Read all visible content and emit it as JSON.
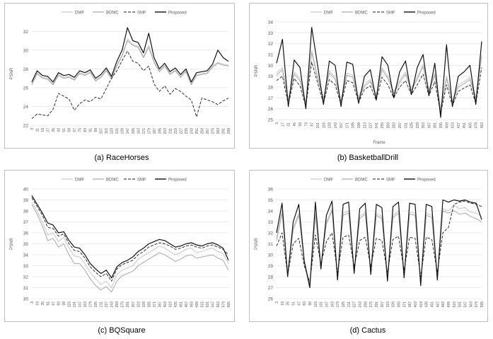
{
  "chart_data": [
    {
      "type": "line",
      "caption": "(a)  RaceHorses",
      "legend": [
        "DMF",
        "BDMC",
        "SMF",
        "Proposed"
      ],
      "legend_placement": "top",
      "ylabel": "PSNR",
      "xlabel": "",
      "ylim": [
        22,
        33
      ],
      "yticks": [
        22,
        24,
        26,
        28,
        30,
        32
      ],
      "xticks": [
        "3",
        "11",
        "19",
        "27",
        "35",
        "43",
        "51",
        "59",
        "67",
        "75",
        "83",
        "91",
        "99",
        "107",
        "115",
        "123",
        "131",
        "139",
        "147",
        "155",
        "163",
        "171",
        "179",
        "187",
        "195",
        "203",
        "211",
        "219",
        "227",
        "235",
        "243",
        "251",
        "259",
        "267",
        "275",
        "283",
        "291",
        "299"
      ],
      "x": [
        3,
        11,
        19,
        27,
        35,
        43,
        51,
        59,
        67,
        75,
        83,
        91,
        99,
        107,
        115,
        123,
        131,
        139,
        147,
        155,
        163,
        171,
        179,
        187,
        195,
        203,
        211,
        219,
        227,
        235,
        243,
        251,
        259,
        267,
        275,
        283,
        291,
        299
      ],
      "series": [
        {
          "name": "DMF",
          "values": [
            26.4,
            27.6,
            27.1,
            27.0,
            26.4,
            27.4,
            27.1,
            27.2,
            26.9,
            27.6,
            27.4,
            27.7,
            26.8,
            27.2,
            27.9,
            27.0,
            28.4,
            29.5,
            31.2,
            30.6,
            30.4,
            29.3,
            30.5,
            28.8,
            27.8,
            28.4,
            27.5,
            27.9,
            27.2,
            27.8,
            26.4,
            27.4,
            27.5,
            27.6,
            28.3,
            28.7,
            28.5,
            28.4
          ]
        },
        {
          "name": "BDMC",
          "values": [
            26.3,
            27.5,
            27.0,
            26.9,
            26.3,
            27.3,
            27.0,
            27.1,
            26.8,
            27.5,
            27.3,
            27.6,
            26.7,
            27.1,
            27.8,
            26.9,
            28.3,
            29.4,
            31.0,
            30.5,
            30.3,
            29.2,
            30.3,
            28.7,
            27.7,
            28.3,
            27.4,
            27.8,
            27.1,
            27.7,
            26.3,
            27.3,
            27.4,
            27.5,
            28.2,
            28.6,
            28.4,
            28.3
          ]
        },
        {
          "name": "SMF",
          "values": [
            22.7,
            23.2,
            23.1,
            23.0,
            23.7,
            25.4,
            25.1,
            24.8,
            23.6,
            24.3,
            24.7,
            24.5,
            25.0,
            24.8,
            25.9,
            27.0,
            27.8,
            28.9,
            29.9,
            28.8,
            28.6,
            27.8,
            28.3,
            26.4,
            25.6,
            26.2,
            25.3,
            25.9,
            25.6,
            25.1,
            24.7,
            22.9,
            24.9,
            24.7,
            24.5,
            24.2,
            24.6,
            24.9
          ]
        },
        {
          "name": "Proposed",
          "values": [
            26.6,
            27.8,
            27.3,
            27.2,
            26.6,
            27.6,
            27.3,
            27.4,
            27.1,
            27.8,
            27.6,
            27.9,
            27.0,
            27.4,
            28.1,
            27.2,
            28.8,
            30.0,
            32.4,
            31.0,
            30.8,
            29.7,
            31.8,
            29.2,
            28.0,
            28.6,
            27.7,
            28.1,
            27.4,
            28.0,
            26.6,
            27.6,
            27.7,
            27.8,
            28.5,
            30.0,
            29.2,
            28.8
          ]
        }
      ]
    },
    {
      "type": "line",
      "caption": "(b)  BasketballDrill",
      "legend": [
        "DMF",
        "BDMC",
        "SMF",
        "Proposed"
      ],
      "legend_placement": "top",
      "ylabel": "PSNR",
      "xlabel": "Frame",
      "ylim": [
        25,
        34
      ],
      "yticks": [
        25,
        26,
        27,
        28,
        29,
        30,
        31,
        32,
        33,
        34
      ],
      "xticks": [
        "3",
        "17",
        "31",
        "45",
        "59",
        "73",
        "87",
        "101",
        "115",
        "129",
        "143",
        "157",
        "171",
        "185",
        "199",
        "213",
        "227",
        "241",
        "255",
        "269",
        "283",
        "297",
        "311",
        "325",
        "339",
        "353",
        "367",
        "381",
        "395",
        "409",
        "423",
        "437",
        "451",
        "465",
        "479",
        "493"
      ],
      "x": [
        3,
        17,
        31,
        45,
        59,
        73,
        87,
        101,
        115,
        129,
        143,
        157,
        171,
        185,
        199,
        213,
        227,
        241,
        255,
        269,
        283,
        297,
        311,
        325,
        339,
        353,
        367,
        381,
        395,
        409,
        423,
        437,
        451,
        465,
        479,
        493
      ],
      "series": [
        {
          "name": "DMF",
          "values": [
            29.3,
            29.8,
            26.9,
            29.4,
            28.8,
            26.6,
            31.4,
            29.0,
            27.0,
            29.5,
            28.9,
            26.8,
            29.3,
            29.1,
            27.1,
            28.3,
            28.7,
            27.3,
            29.8,
            29.0,
            27.6,
            28.6,
            29.4,
            27.9,
            28.9,
            30.1,
            27.8,
            29.3,
            26.0,
            29.0,
            26.8,
            28.2,
            28.5,
            28.9,
            27.0,
            31.0
          ]
        },
        {
          "name": "BDMC",
          "values": [
            29.1,
            29.6,
            26.7,
            29.2,
            28.6,
            26.4,
            31.2,
            28.8,
            26.8,
            29.3,
            28.7,
            26.6,
            29.1,
            28.9,
            26.9,
            28.1,
            28.5,
            27.1,
            29.6,
            28.8,
            27.4,
            28.4,
            29.2,
            27.7,
            28.7,
            29.9,
            27.6,
            29.1,
            25.8,
            28.8,
            26.6,
            28.0,
            28.3,
            28.7,
            26.8,
            30.8
          ]
        },
        {
          "name": "SMF",
          "values": [
            28.6,
            29.0,
            26.4,
            28.8,
            28.1,
            26.2,
            30.3,
            28.4,
            26.5,
            28.7,
            28.2,
            26.4,
            28.6,
            28.4,
            26.6,
            27.8,
            28.1,
            26.8,
            28.9,
            28.2,
            27.0,
            28.0,
            28.6,
            27.3,
            28.2,
            29.2,
            27.2,
            28.5,
            25.6,
            28.2,
            26.3,
            27.6,
            27.9,
            28.2,
            26.5,
            29.8
          ]
        },
        {
          "name": "Proposed",
          "values": [
            30.2,
            32.4,
            26.2,
            30.5,
            29.8,
            26.0,
            33.5,
            30.0,
            26.4,
            30.4,
            30.0,
            26.2,
            30.3,
            30.1,
            26.5,
            29.0,
            29.6,
            26.8,
            30.8,
            30.0,
            27.0,
            29.4,
            30.4,
            27.3,
            29.8,
            31.0,
            27.2,
            30.2,
            25.2,
            31.9,
            26.2,
            29.0,
            29.4,
            30.0,
            26.4,
            32.2
          ]
        }
      ]
    },
    {
      "type": "line",
      "caption": "(c)  BQSquare",
      "legend": [
        "DMF",
        "BDMC",
        "SMF",
        "Proposed"
      ],
      "legend_placement": "top",
      "ylabel": "PSNR",
      "xlabel": "",
      "ylim": [
        30,
        40
      ],
      "yticks": [
        30,
        31,
        32,
        33,
        34,
        35,
        36,
        37,
        38,
        39,
        40
      ],
      "xticks": [
        "3",
        "19",
        "35",
        "51",
        "67",
        "83",
        "99",
        "115",
        "131",
        "147",
        "163",
        "179",
        "195",
        "211",
        "227",
        "243",
        "259",
        "275",
        "291",
        "307",
        "323",
        "339",
        "355",
        "371",
        "387",
        "403",
        "419",
        "435",
        "451",
        "467",
        "483",
        "499",
        "515",
        "531",
        "547",
        "563",
        "579",
        "595"
      ],
      "x": [
        3,
        19,
        35,
        51,
        67,
        83,
        99,
        115,
        131,
        147,
        163,
        179,
        195,
        211,
        227,
        243,
        259,
        275,
        291,
        307,
        323,
        339,
        355,
        371,
        387,
        403,
        419,
        435,
        451,
        467,
        483,
        499,
        515,
        531,
        547,
        563,
        579,
        595
      ],
      "series": [
        {
          "name": "DMF",
          "values": [
            38.8,
            38.0,
            37.0,
            35.8,
            36.0,
            35.2,
            35.6,
            34.6,
            33.9,
            33.8,
            33.2,
            32.4,
            31.8,
            31.3,
            31.6,
            31.0,
            32.2,
            32.6,
            32.8,
            33.0,
            33.6,
            33.9,
            34.2,
            34.5,
            34.8,
            34.6,
            34.3,
            34.0,
            34.2,
            34.5,
            34.6,
            34.2,
            34.3,
            34.5,
            34.6,
            34.3,
            34.1,
            33.2
          ]
        },
        {
          "name": "BDMC",
          "values": [
            38.6,
            37.7,
            36.6,
            35.3,
            35.5,
            34.7,
            35.0,
            34.0,
            33.2,
            33.2,
            32.6,
            31.8,
            31.2,
            30.8,
            31.1,
            30.6,
            31.6,
            32.1,
            32.3,
            32.5,
            33.0,
            33.3,
            33.6,
            33.9,
            34.2,
            34.0,
            33.7,
            33.4,
            33.6,
            33.9,
            34.0,
            33.7,
            33.8,
            33.9,
            34.0,
            33.7,
            33.5,
            32.6
          ]
        },
        {
          "name": "SMF",
          "values": [
            39.2,
            38.4,
            37.6,
            36.5,
            36.4,
            35.7,
            35.9,
            35.0,
            34.4,
            34.3,
            33.7,
            32.9,
            32.4,
            32.0,
            32.3,
            31.6,
            32.7,
            33.1,
            33.3,
            33.5,
            34.0,
            34.3,
            34.7,
            34.9,
            35.1,
            35.0,
            34.8,
            34.5,
            34.6,
            34.8,
            34.9,
            34.7,
            34.6,
            34.8,
            34.9,
            34.7,
            34.5,
            34.0
          ]
        },
        {
          "name": "Proposed",
          "values": [
            39.4,
            38.6,
            37.8,
            36.9,
            36.7,
            36.0,
            36.1,
            35.3,
            34.7,
            34.6,
            34.0,
            33.2,
            32.7,
            32.3,
            32.6,
            31.9,
            32.9,
            33.3,
            33.5,
            33.8,
            34.3,
            34.6,
            35.0,
            35.2,
            35.4,
            35.3,
            35.0,
            34.7,
            34.8,
            35.0,
            35.1,
            34.9,
            34.8,
            35.0,
            35.1,
            34.9,
            34.6,
            33.5
          ]
        }
      ]
    },
    {
      "type": "line",
      "caption": "(d)  Cactus",
      "legend": [
        "DMF",
        "BDMC",
        "SMF",
        "Proposed"
      ],
      "legend_placement": "top",
      "ylabel": "PSNR",
      "xlabel": "",
      "ylim": [
        26,
        36
      ],
      "yticks": [
        26,
        27,
        28,
        29,
        30,
        31,
        32,
        33,
        34,
        35,
        36
      ],
      "xticks": [
        "3",
        "19",
        "35",
        "51",
        "67",
        "83",
        "99",
        "115",
        "131",
        "147",
        "163",
        "179",
        "195",
        "211",
        "227",
        "243",
        "259",
        "275",
        "291",
        "307",
        "323",
        "339",
        "355",
        "371",
        "387",
        "403",
        "419",
        "435",
        "451",
        "467",
        "483",
        "499",
        "515",
        "531",
        "547",
        "563",
        "579",
        "595"
      ],
      "x": [
        3,
        19,
        35,
        51,
        67,
        83,
        99,
        115,
        131,
        147,
        163,
        179,
        195,
        211,
        227,
        243,
        259,
        275,
        291,
        307,
        323,
        339,
        355,
        371,
        387,
        403,
        419,
        435,
        451,
        467,
        483,
        499,
        515,
        531,
        547,
        563,
        579,
        595
      ],
      "series": [
        {
          "name": "DMF",
          "values": [
            31.5,
            34.0,
            28.3,
            32.5,
            33.8,
            29.5,
            27.3,
            33.8,
            29.0,
            33.0,
            34.2,
            28.0,
            33.8,
            34.0,
            28.6,
            33.5,
            33.9,
            28.5,
            33.8,
            33.5,
            28.0,
            33.6,
            34.0,
            28.2,
            33.9,
            33.8,
            27.5,
            33.8,
            33.6,
            28.0,
            34.2,
            34.0,
            34.5,
            34.2,
            34.3,
            33.9,
            33.8,
            33.5
          ]
        },
        {
          "name": "BDMC",
          "values": [
            31.3,
            33.8,
            28.1,
            32.3,
            33.6,
            29.3,
            27.1,
            33.6,
            28.8,
            32.8,
            34.0,
            27.8,
            33.6,
            33.8,
            28.4,
            33.3,
            33.7,
            28.3,
            33.6,
            33.3,
            27.8,
            33.4,
            33.8,
            28.0,
            33.7,
            33.6,
            27.3,
            33.6,
            33.4,
            27.8,
            34.0,
            33.8,
            34.0,
            33.7,
            33.8,
            33.5,
            33.3,
            33.0
          ]
        },
        {
          "name": "SMF",
          "values": [
            30.8,
            32.0,
            28.2,
            31.0,
            31.5,
            29.0,
            27.5,
            31.8,
            29.2,
            31.2,
            32.0,
            28.4,
            31.6,
            31.8,
            28.9,
            31.3,
            31.6,
            28.9,
            31.5,
            31.3,
            28.4,
            31.4,
            31.7,
            28.6,
            31.6,
            31.5,
            28.0,
            31.6,
            31.4,
            28.4,
            32.0,
            32.5,
            34.6,
            34.8,
            34.9,
            34.7,
            34.6,
            34.4
          ]
        },
        {
          "name": "Proposed",
          "values": [
            32.0,
            34.7,
            28.0,
            33.0,
            34.6,
            29.4,
            27.0,
            34.8,
            28.7,
            33.6,
            34.9,
            27.7,
            34.6,
            34.8,
            28.3,
            34.2,
            34.7,
            28.2,
            34.6,
            34.3,
            27.6,
            34.4,
            34.8,
            27.9,
            34.7,
            34.6,
            27.2,
            34.6,
            34.4,
            27.7,
            35.0,
            34.8,
            35.0,
            34.9,
            35.0,
            34.8,
            34.7,
            33.2
          ]
        }
      ]
    }
  ],
  "colors": {
    "dmf": "#c8c8c8",
    "bdmc": "#a8a8a8",
    "smf": "#1a1a1a",
    "proposed": "#111111",
    "grid": "#e4e4e4",
    "axis_text": "#595959"
  }
}
